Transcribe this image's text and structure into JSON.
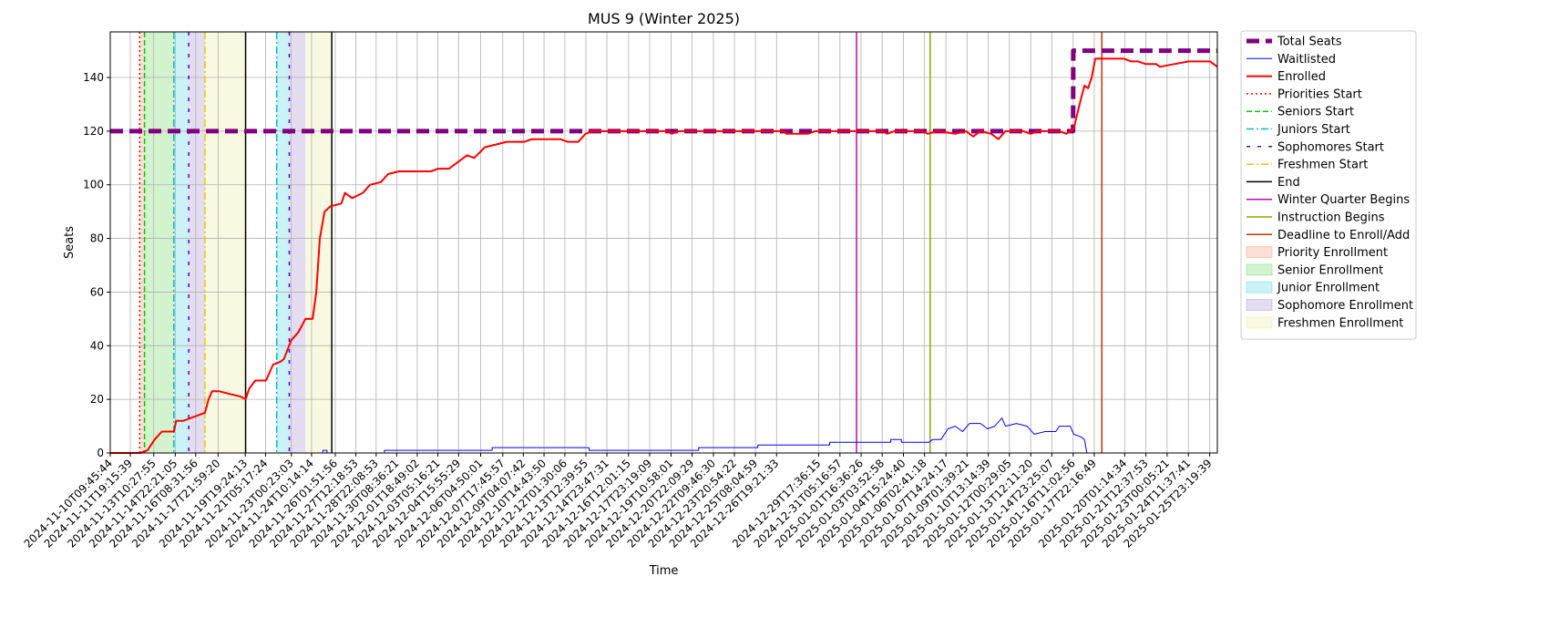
{
  "chart_data": {
    "type": "line",
    "title": "MUS 9 (Winter 2025)",
    "xlabel": "Time",
    "ylabel": "Seats",
    "ylim": [
      0,
      157
    ],
    "yticks": [
      0,
      20,
      40,
      60,
      80,
      100,
      120,
      140
    ],
    "grid": true,
    "legend_position": "outside-right",
    "x_start": "2024-11-10T09:45:44",
    "x_end": "2025-01-26T12:00:00",
    "xtick_labels": [
      "2024-11-10T09:45:44",
      "2024-11-11T19:15:39",
      "2024-11-13T10:27:55",
      "2024-11-14T22:21:05",
      "2024-11-16T08:31:56",
      "2024-11-17T21:59:20",
      "2024-11-19T19:24:13",
      "2024-11-21T05:17:24",
      "2024-11-23T00:23:03",
      "2024-11-24T10:14:14",
      "2024-11-26T01:51:56",
      "2024-11-27T12:18:53",
      "2024-11-28T22:08:53",
      "2024-11-30T08:36:21",
      "2024-12-01T18:49:02",
      "2024-12-03T05:16:21",
      "2024-12-04T15:55:29",
      "2024-12-06T04:50:01",
      "2024-12-07T17:45:57",
      "2024-12-09T04:07:42",
      "2024-12-10T14:43:50",
      "2024-12-12T01:30:06",
      "2024-12-13T12:39:55",
      "2024-12-14T23:47:31",
      "2024-12-16T12:01:15",
      "2024-12-17T23:19:09",
      "2024-12-19T10:58:01",
      "2024-12-20T22:09:29",
      "2024-12-22T09:46:30",
      "2024-12-23T20:54:22",
      "2024-12-25T08:04:59",
      "2024-12-26T19:21:33",
      "2024-12-29T17:36:15",
      "2024-12-31T05:16:57",
      "2025-01-01T16:36:26",
      "2025-01-03T03:52:58",
      "2025-01-04T15:24:40",
      "2025-01-06T02:41:18",
      "2025-01-07T14:24:17",
      "2025-01-09T01:39:21",
      "2025-01-10T13:14:39",
      "2025-01-12T00:29:05",
      "2025-01-13T12:11:20",
      "2025-01-14T23:25:07",
      "2025-01-16T11:02:56",
      "2025-01-17T22:16:49",
      "2025-01-20T01:14:34",
      "2025-01-21T12:37:53",
      "2025-01-23T00:05:21",
      "2025-01-24T11:37:41",
      "2025-01-25T23:19:39"
    ],
    "series": [
      {
        "name": "Total Seats",
        "color": "#800080",
        "style": "dashed-thick",
        "points": [
          [
            "2024-11-10T09:45:44",
            120
          ],
          [
            "2025-01-16T11:00:00",
            120
          ],
          [
            "2025-01-16T11:10:00",
            150
          ],
          [
            "2025-01-26T12:00:00",
            150
          ]
        ]
      },
      {
        "name": "Waitlisted",
        "color": "#0000ff",
        "style": "solid-thin",
        "points": [
          [
            "2024-11-10T09:45:44",
            0
          ],
          [
            "2024-11-25T05:00:00",
            0
          ],
          [
            "2024-11-25T05:00:00",
            1
          ],
          [
            "2024-11-25T12:00:00",
            1
          ],
          [
            "2024-11-25T12:00:00",
            0
          ],
          [
            "2024-11-29T12:00:00",
            0
          ],
          [
            "2024-11-29T12:00:00",
            1
          ],
          [
            "2024-12-07T00:00:00",
            1
          ],
          [
            "2024-12-07T00:00:00",
            2
          ],
          [
            "2024-12-13T18:00:00",
            2
          ],
          [
            "2024-12-13T18:00:00",
            1
          ],
          [
            "2024-12-19T12:00:00",
            1
          ],
          [
            "2024-12-21T09:00:00",
            1
          ],
          [
            "2024-12-21T09:00:00",
            2
          ],
          [
            "2024-12-25T12:00:00",
            2
          ],
          [
            "2024-12-25T12:00:00",
            3
          ],
          [
            "2024-12-30T12:00:00",
            3
          ],
          [
            "2024-12-30T12:00:00",
            4
          ],
          [
            "2025-01-03T18:00:00",
            4
          ],
          [
            "2025-01-03T18:00:00",
            5
          ],
          [
            "2025-01-04T12:00:00",
            5
          ],
          [
            "2025-01-04T12:00:00",
            4
          ],
          [
            "2025-01-06T10:00:00",
            4
          ],
          [
            "2025-01-06T16:00:00",
            5
          ],
          [
            "2025-01-07T06:00:00",
            5
          ],
          [
            "2025-01-07T18:00:00",
            9
          ],
          [
            "2025-01-08T06:00:00",
            10
          ],
          [
            "2025-01-08T18:00:00",
            8
          ],
          [
            "2025-01-09T06:00:00",
            11
          ],
          [
            "2025-01-10T00:00:00",
            11
          ],
          [
            "2025-01-10T12:00:00",
            9
          ],
          [
            "2025-01-11T00:00:00",
            10
          ],
          [
            "2025-01-11T12:00:00",
            13
          ],
          [
            "2025-01-11T18:00:00",
            10
          ],
          [
            "2025-01-12T12:00:00",
            11
          ],
          [
            "2025-01-13T06:00:00",
            10
          ],
          [
            "2025-01-13T18:00:00",
            7
          ],
          [
            "2025-01-14T12:00:00",
            8
          ],
          [
            "2025-01-15T06:00:00",
            8
          ],
          [
            "2025-01-15T12:00:00",
            10
          ],
          [
            "2025-01-16T06:00:00",
            10
          ],
          [
            "2025-01-16T12:00:00",
            7
          ],
          [
            "2025-01-17T00:00:00",
            6
          ],
          [
            "2025-01-17T06:00:00",
            5
          ],
          [
            "2025-01-17T10:00:00",
            0
          ],
          [
            "2025-01-26T12:00:00",
            0
          ]
        ]
      },
      {
        "name": "Enrolled",
        "color": "#ff0000",
        "style": "solid-thick",
        "points": [
          [
            "2024-11-10T09:45:44",
            0
          ],
          [
            "2024-11-12T12:00:00",
            0
          ],
          [
            "2024-11-13T00:00:00",
            1
          ],
          [
            "2024-11-13T12:00:00",
            5
          ],
          [
            "2024-11-14T00:00:00",
            8
          ],
          [
            "2024-11-14T20:00:00",
            8
          ],
          [
            "2024-11-15T00:00:00",
            12
          ],
          [
            "2024-11-15T12:00:00",
            12
          ],
          [
            "2024-11-16T00:00:00",
            13
          ],
          [
            "2024-11-16T12:00:00",
            14
          ],
          [
            "2024-11-17T00:00:00",
            15
          ],
          [
            "2024-11-17T06:00:00",
            20
          ],
          [
            "2024-11-17T12:00:00",
            23
          ],
          [
            "2024-11-18T00:00:00",
            23
          ],
          [
            "2024-11-18T18:00:00",
            22
          ],
          [
            "2024-11-19T12:00:00",
            21
          ],
          [
            "2024-11-19T20:00:00",
            20
          ],
          [
            "2024-11-20T02:00:00",
            24
          ],
          [
            "2024-11-20T12:00:00",
            27
          ],
          [
            "2024-11-21T06:00:00",
            27
          ],
          [
            "2024-11-21T18:00:00",
            33
          ],
          [
            "2024-11-22T06:00:00",
            34
          ],
          [
            "2024-11-22T12:00:00",
            35
          ],
          [
            "2024-11-23T00:00:00",
            42
          ],
          [
            "2024-11-23T12:00:00",
            45
          ],
          [
            "2024-11-24T00:00:00",
            50
          ],
          [
            "2024-11-24T12:00:00",
            50
          ],
          [
            "2024-11-24T18:00:00",
            60
          ],
          [
            "2024-11-25T00:00:00",
            80
          ],
          [
            "2024-11-25T08:00:00",
            90
          ],
          [
            "2024-11-25T18:00:00",
            92
          ],
          [
            "2024-11-26T12:00:00",
            93
          ],
          [
            "2024-11-26T18:00:00",
            97
          ],
          [
            "2024-11-27T06:00:00",
            95
          ],
          [
            "2024-11-28T00:00:00",
            97
          ],
          [
            "2024-11-28T12:00:00",
            100
          ],
          [
            "2024-11-29T06:00:00",
            101
          ],
          [
            "2024-11-29T18:00:00",
            104
          ],
          [
            "2024-11-30T12:00:00",
            105
          ],
          [
            "2024-12-02T18:00:00",
            105
          ],
          [
            "2024-12-03T06:00:00",
            106
          ],
          [
            "2024-12-04T00:00:00",
            106
          ],
          [
            "2024-12-04T12:00:00",
            108
          ],
          [
            "2024-12-05T06:00:00",
            111
          ],
          [
            "2024-12-05T18:00:00",
            110
          ],
          [
            "2024-12-06T12:00:00",
            114
          ],
          [
            "2024-12-07T06:00:00",
            115
          ],
          [
            "2024-12-08T00:00:00",
            116
          ],
          [
            "2024-12-09T06:00:00",
            116
          ],
          [
            "2024-12-09T18:00:00",
            117
          ],
          [
            "2024-12-11T18:00:00",
            117
          ],
          [
            "2024-12-12T06:00:00",
            116
          ],
          [
            "2024-12-13T00:00:00",
            116
          ],
          [
            "2024-12-13T12:00:00",
            119
          ],
          [
            "2024-12-14T00:00:00",
            120
          ],
          [
            "2024-12-19T06:00:00",
            120
          ],
          [
            "2024-12-19T12:00:00",
            119
          ],
          [
            "2024-12-20T00:00:00",
            120
          ],
          [
            "2024-12-27T06:00:00",
            120
          ],
          [
            "2024-12-27T12:00:00",
            119
          ],
          [
            "2024-12-29T00:00:00",
            119
          ],
          [
            "2024-12-29T12:00:00",
            120
          ],
          [
            "2025-01-03T06:00:00",
            120
          ],
          [
            "2025-01-03T12:00:00",
            119
          ],
          [
            "2025-01-04T00:00:00",
            120
          ],
          [
            "2025-01-06T00:00:00",
            120
          ],
          [
            "2025-01-06T08:00:00",
            119
          ],
          [
            "2025-01-07T00:00:00",
            120
          ],
          [
            "2025-01-08T06:00:00",
            119
          ],
          [
            "2025-01-09T00:00:00",
            120
          ],
          [
            "2025-01-09T12:00:00",
            118
          ],
          [
            "2025-01-10T00:00:00",
            120
          ],
          [
            "2025-01-10T18:00:00",
            119
          ],
          [
            "2025-01-11T06:00:00",
            117
          ],
          [
            "2025-01-11T18:00:00",
            120
          ],
          [
            "2025-01-13T00:00:00",
            120
          ],
          [
            "2025-01-13T12:00:00",
            119
          ],
          [
            "2025-01-14T00:00:00",
            120
          ],
          [
            "2025-01-15T12:00:00",
            120
          ],
          [
            "2025-01-16T00:00:00",
            119
          ],
          [
            "2025-01-16T12:00:00",
            121
          ],
          [
            "2025-01-17T00:00:00",
            132
          ],
          [
            "2025-01-17T06:00:00",
            137
          ],
          [
            "2025-01-17T12:00:00",
            136
          ],
          [
            "2025-01-17T18:00:00",
            140
          ],
          [
            "2025-01-18T00:00:00",
            147
          ],
          [
            "2025-01-20T00:00:00",
            147
          ],
          [
            "2025-01-20T12:00:00",
            146
          ],
          [
            "2025-01-21T00:00:00",
            146
          ],
          [
            "2025-01-21T12:00:00",
            145
          ],
          [
            "2025-01-22T06:00:00",
            145
          ],
          [
            "2025-01-22T12:00:00",
            144
          ],
          [
            "2025-01-23T12:00:00",
            145
          ],
          [
            "2025-01-24T12:00:00",
            146
          ],
          [
            "2025-01-25T06:00:00",
            146
          ],
          [
            "2025-01-26T00:00:00",
            146
          ],
          [
            "2025-01-26T12:00:00",
            144
          ]
        ]
      }
    ],
    "spans": [
      {
        "name": "Priority Enrollment",
        "color": "#f4a582",
        "start": "2024-11-12T11:00:00",
        "end": "2024-11-12T19:00:00"
      },
      {
        "name": "Senior Enrollment",
        "color": "#7fdc6f",
        "start": "2024-11-12T19:00:00",
        "end": "2024-11-14T20:00:00"
      },
      {
        "name": "Junior Enrollment",
        "color": "#66d9e8",
        "start": "2024-11-14T20:00:00",
        "end": "2024-11-15T21:00:00"
      },
      {
        "name": "Sophomore Enrollment",
        "color": "#b39ddb",
        "start": "2024-11-15T21:00:00",
        "end": "2024-11-17T00:00:00"
      },
      {
        "name": "Freshmen Enrollment",
        "color": "#eeeeaa",
        "start": "2024-11-17T00:00:00",
        "end": "2024-11-19T20:00:00"
      },
      {
        "name": "Junior Enrollment",
        "color": "#66d9e8",
        "start": "2024-11-22T00:00:00",
        "end": "2024-11-22T21:00:00"
      },
      {
        "name": "Sophomore Enrollment",
        "color": "#b39ddb",
        "start": "2024-11-22T21:00:00",
        "end": "2024-11-24T00:00:00"
      },
      {
        "name": "Freshmen Enrollment",
        "color": "#eeeeaa",
        "start": "2024-11-24T00:00:00",
        "end": "2024-11-25T20:00:00"
      }
    ],
    "vlines": [
      {
        "name": "Priorities Start",
        "color": "#ff0000",
        "style": "dotted",
        "at": "2024-11-12T11:00:00"
      },
      {
        "name": "Seniors Start",
        "color": "#00cc00",
        "style": "dashed",
        "at": "2024-11-12T19:00:00"
      },
      {
        "name": "Juniors Start",
        "color": "#00c0c0",
        "style": "dashdot",
        "at": "2024-11-14T20:00:00"
      },
      {
        "name": "Sophomores Start",
        "color": "#5500cc",
        "style": "loosedash",
        "at": "2024-11-15T21:00:00"
      },
      {
        "name": "Freshmen Start",
        "color": "#e6c800",
        "style": "dashdot",
        "at": "2024-11-17T00:00:00"
      },
      {
        "name": "End",
        "color": "#000000",
        "style": "solid",
        "at": "2024-11-19T20:00:00"
      },
      {
        "name": "Juniors Start",
        "color": "#00c0c0",
        "style": "dashdot",
        "at": "2024-11-22T00:00:00"
      },
      {
        "name": "Sophomores Start",
        "color": "#5500cc",
        "style": "loosedash",
        "at": "2024-11-22T21:00:00"
      },
      {
        "name": "End",
        "color": "#000000",
        "style": "solid",
        "at": "2024-11-25T20:00:00"
      },
      {
        "name": "Winter Quarter Begins",
        "color": "#cc00aa",
        "style": "solid",
        "at": "2025-01-01T09:00:00"
      },
      {
        "name": "Instruction Begins",
        "color": "#88aa00",
        "style": "solid",
        "at": "2025-01-06T12:00:00"
      },
      {
        "name": "Deadline to Enroll/Add",
        "color": "#cc3300",
        "style": "solid",
        "at": "2025-01-18T11:00:00"
      }
    ],
    "legend": [
      {
        "label": "Total Seats",
        "kind": "line",
        "color": "#800080",
        "style": "dashed-thick"
      },
      {
        "label": "Waitlisted",
        "kind": "line",
        "color": "#0000ff",
        "style": "solid-thin"
      },
      {
        "label": "Enrolled",
        "kind": "line",
        "color": "#ff0000",
        "style": "solid-thick"
      },
      {
        "label": "Priorities Start",
        "kind": "line",
        "color": "#ff0000",
        "style": "dotted"
      },
      {
        "label": "Seniors Start",
        "kind": "line",
        "color": "#00cc00",
        "style": "dashed"
      },
      {
        "label": "Juniors Start",
        "kind": "line",
        "color": "#00c0c0",
        "style": "dashdot"
      },
      {
        "label": "Sophomores Start",
        "kind": "line",
        "color": "#5500cc",
        "style": "loosedash"
      },
      {
        "label": "Freshmen Start",
        "kind": "line",
        "color": "#e6c800",
        "style": "dashdot"
      },
      {
        "label": "End",
        "kind": "line",
        "color": "#000000",
        "style": "solid"
      },
      {
        "label": "Winter Quarter Begins",
        "kind": "line",
        "color": "#cc00aa",
        "style": "solid"
      },
      {
        "label": "Instruction Begins",
        "kind": "line",
        "color": "#88aa00",
        "style": "solid"
      },
      {
        "label": "Deadline to Enroll/Add",
        "kind": "line",
        "color": "#cc3300",
        "style": "solid"
      },
      {
        "label": "Priority Enrollment",
        "kind": "patch",
        "color": "#f4a582"
      },
      {
        "label": "Senior Enrollment",
        "kind": "patch",
        "color": "#7fdc6f"
      },
      {
        "label": "Junior Enrollment",
        "kind": "patch",
        "color": "#66d9e8"
      },
      {
        "label": "Sophomore Enrollment",
        "kind": "patch",
        "color": "#b39ddb"
      },
      {
        "label": "Freshmen Enrollment",
        "kind": "patch",
        "color": "#eeeeaa"
      }
    ]
  }
}
